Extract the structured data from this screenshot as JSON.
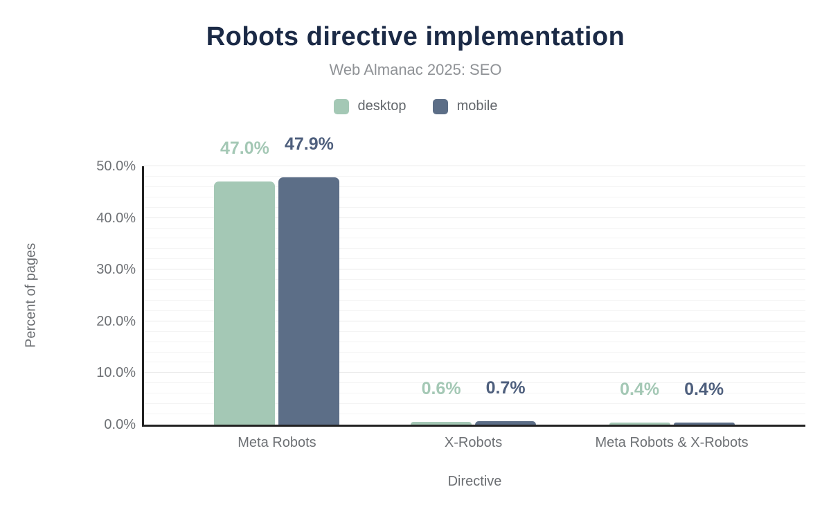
{
  "chart_data": {
    "type": "bar",
    "title": "Robots directive implementation",
    "subtitle": "Web Almanac 2025: SEO",
    "xlabel": "Directive",
    "ylabel": "Percent of pages",
    "categories": [
      "Meta Robots",
      "X-Robots",
      "Meta Robots & X-Robots"
    ],
    "series": [
      {
        "name": "desktop",
        "color": "#a4c8b5",
        "label_color": "#a4c8b5",
        "values": [
          47.0,
          0.6,
          0.4
        ],
        "value_labels": [
          "47.0%",
          "0.6%",
          "0.4%"
        ]
      },
      {
        "name": "mobile",
        "color": "#5c6e87",
        "label_color": "#4e5f7d",
        "values": [
          47.9,
          0.7,
          0.4
        ],
        "value_labels": [
          "47.9%",
          "0.7%",
          "0.4%"
        ]
      }
    ],
    "ylim": [
      0,
      50
    ],
    "yticks": [
      "0.0%",
      "10.0%",
      "20.0%",
      "30.0%",
      "40.0%",
      "50.0%"
    ],
    "ytick_values": [
      0,
      10,
      20,
      30,
      40,
      50
    ],
    "minor_gridline_step": 2,
    "major_gridline_step": 10,
    "grid": "horizontal",
    "legend_position": "top",
    "colors": {
      "title": "#1b2a46",
      "subtitle": "#8f9296",
      "axis_text": "#6e7175",
      "axis_line": "#222222",
      "minor_gridline": "#f4f4f4",
      "major_gridline": "#e9e9e9"
    }
  }
}
